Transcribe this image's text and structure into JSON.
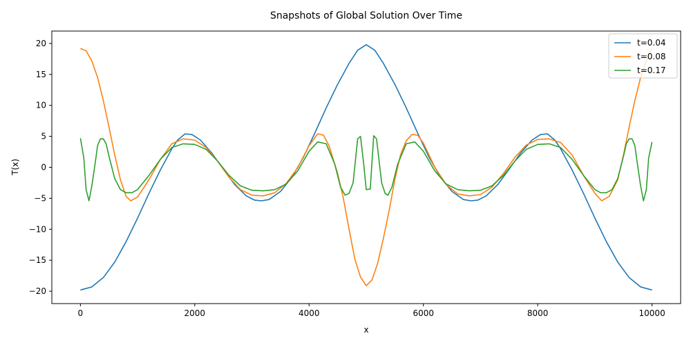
{
  "chart_data": {
    "type": "line",
    "title": "Snapshots of Global Solution Over Time",
    "xlabel": "x",
    "ylabel": "T(x)",
    "xlim": [
      -500,
      10500
    ],
    "ylim": [
      -22,
      22
    ],
    "xticks": [
      0,
      2000,
      4000,
      6000,
      8000,
      10000
    ],
    "yticks": [
      -20,
      -15,
      -10,
      -5,
      0,
      5,
      10,
      15,
      20
    ],
    "grid": false,
    "legend_position": "top-right",
    "series": [
      {
        "name": "t=0.04",
        "color": "#1f77b4",
        "points": [
          [
            0,
            -19.8
          ],
          [
            200,
            -19.3
          ],
          [
            400,
            -17.8
          ],
          [
            600,
            -15.3
          ],
          [
            800,
            -12.0
          ],
          [
            1000,
            -8.2
          ],
          [
            1200,
            -4.2
          ],
          [
            1400,
            -0.4
          ],
          [
            1600,
            3.0
          ],
          [
            1700,
            4.4
          ],
          [
            1830,
            5.4
          ],
          [
            1950,
            5.3
          ],
          [
            2100,
            4.4
          ],
          [
            2300,
            2.3
          ],
          [
            2500,
            -0.3
          ],
          [
            2700,
            -2.8
          ],
          [
            2900,
            -4.6
          ],
          [
            3050,
            -5.3
          ],
          [
            3170,
            -5.4
          ],
          [
            3300,
            -5.2
          ],
          [
            3500,
            -3.9
          ],
          [
            3700,
            -1.6
          ],
          [
            3900,
            1.6
          ],
          [
            4100,
            5.5
          ],
          [
            4300,
            9.6
          ],
          [
            4500,
            13.4
          ],
          [
            4700,
            16.8
          ],
          [
            4850,
            18.9
          ],
          [
            5000,
            19.8
          ],
          [
            5150,
            18.9
          ],
          [
            5300,
            16.8
          ],
          [
            5500,
            13.4
          ],
          [
            5700,
            9.6
          ],
          [
            5900,
            5.5
          ],
          [
            6100,
            1.6
          ],
          [
            6300,
            -1.6
          ],
          [
            6500,
            -3.9
          ],
          [
            6700,
            -5.2
          ],
          [
            6830,
            -5.4
          ],
          [
            6950,
            -5.3
          ],
          [
            7100,
            -4.6
          ],
          [
            7300,
            -2.8
          ],
          [
            7500,
            -0.3
          ],
          [
            7700,
            2.3
          ],
          [
            7900,
            4.4
          ],
          [
            8050,
            5.3
          ],
          [
            8170,
            5.4
          ],
          [
            8300,
            4.4
          ],
          [
            8400,
            3.0
          ],
          [
            8600,
            -0.4
          ],
          [
            8800,
            -4.2
          ],
          [
            9000,
            -8.2
          ],
          [
            9200,
            -12.0
          ],
          [
            9400,
            -15.3
          ],
          [
            9600,
            -17.8
          ],
          [
            9800,
            -19.3
          ],
          [
            10000,
            -19.8
          ]
        ]
      },
      {
        "name": "t=0.08",
        "color": "#ff7f0e",
        "points": [
          [
            0,
            19.2
          ],
          [
            100,
            18.8
          ],
          [
            200,
            17.2
          ],
          [
            300,
            14.5
          ],
          [
            400,
            10.8
          ],
          [
            500,
            6.5
          ],
          [
            600,
            2.0
          ],
          [
            700,
            -2.0
          ],
          [
            800,
            -4.7
          ],
          [
            880,
            -5.4
          ],
          [
            1000,
            -4.8
          ],
          [
            1200,
            -2.0
          ],
          [
            1400,
            1.3
          ],
          [
            1600,
            3.8
          ],
          [
            1800,
            4.6
          ],
          [
            2000,
            4.4
          ],
          [
            2200,
            3.2
          ],
          [
            2400,
            1.0
          ],
          [
            2600,
            -1.6
          ],
          [
            2800,
            -3.6
          ],
          [
            3000,
            -4.5
          ],
          [
            3200,
            -4.6
          ],
          [
            3400,
            -4.1
          ],
          [
            3600,
            -2.6
          ],
          [
            3800,
            -0.1
          ],
          [
            4000,
            3.5
          ],
          [
            4150,
            5.4
          ],
          [
            4250,
            5.2
          ],
          [
            4350,
            3.5
          ],
          [
            4500,
            -1.0
          ],
          [
            4600,
            -5.0
          ],
          [
            4700,
            -10.0
          ],
          [
            4800,
            -14.8
          ],
          [
            4900,
            -17.7
          ],
          [
            5000,
            -19.1
          ],
          [
            5100,
            -18.2
          ],
          [
            5200,
            -15.5
          ],
          [
            5300,
            -11.5
          ],
          [
            5400,
            -7.0
          ],
          [
            5500,
            -2.0
          ],
          [
            5600,
            2.0
          ],
          [
            5700,
            4.3
          ],
          [
            5800,
            5.3
          ],
          [
            5900,
            5.2
          ],
          [
            6000,
            3.9
          ],
          [
            6200,
            0.0
          ],
          [
            6400,
            -2.8
          ],
          [
            6600,
            -4.3
          ],
          [
            6800,
            -4.6
          ],
          [
            7000,
            -4.4
          ],
          [
            7200,
            -3.2
          ],
          [
            7400,
            -1.0
          ],
          [
            7600,
            1.6
          ],
          [
            7800,
            3.6
          ],
          [
            8000,
            4.5
          ],
          [
            8200,
            4.6
          ],
          [
            8400,
            4.0
          ],
          [
            8600,
            2.0
          ],
          [
            8800,
            -1.3
          ],
          [
            9000,
            -4.2
          ],
          [
            9120,
            -5.4
          ],
          [
            9250,
            -4.7
          ],
          [
            9400,
            -2.0
          ],
          [
            9500,
            2.0
          ],
          [
            9600,
            6.5
          ],
          [
            9700,
            10.8
          ],
          [
            9800,
            14.5
          ],
          [
            9900,
            17.2
          ],
          [
            10000,
            19.2
          ]
        ]
      },
      {
        "name": "t=0.17",
        "color": "#2ca02c",
        "points": [
          [
            0,
            4.7
          ],
          [
            60,
            1.5
          ],
          [
            100,
            -3.6
          ],
          [
            150,
            -5.4
          ],
          [
            200,
            -3.0
          ],
          [
            260,
            0.8
          ],
          [
            300,
            3.5
          ],
          [
            350,
            4.6
          ],
          [
            400,
            4.6
          ],
          [
            450,
            3.8
          ],
          [
            500,
            1.8
          ],
          [
            600,
            -1.8
          ],
          [
            700,
            -3.6
          ],
          [
            800,
            -4.1
          ],
          [
            900,
            -4.1
          ],
          [
            1000,
            -3.6
          ],
          [
            1200,
            -1.3
          ],
          [
            1400,
            1.3
          ],
          [
            1600,
            3.2
          ],
          [
            1800,
            3.8
          ],
          [
            2000,
            3.7
          ],
          [
            2200,
            2.9
          ],
          [
            2400,
            1.0
          ],
          [
            2600,
            -1.3
          ],
          [
            2800,
            -3.0
          ],
          [
            3000,
            -3.7
          ],
          [
            3200,
            -3.8
          ],
          [
            3400,
            -3.6
          ],
          [
            3600,
            -2.7
          ],
          [
            3800,
            -0.6
          ],
          [
            4000,
            2.6
          ],
          [
            4150,
            4.1
          ],
          [
            4300,
            3.8
          ],
          [
            4450,
            0.5
          ],
          [
            4550,
            -3.2
          ],
          [
            4630,
            -4.5
          ],
          [
            4700,
            -4.2
          ],
          [
            4770,
            -2.5
          ],
          [
            4850,
            4.6
          ],
          [
            4900,
            5.0
          ],
          [
            4950,
            1.0
          ],
          [
            5000,
            -3.6
          ],
          [
            5070,
            -3.5
          ],
          [
            5130,
            5.1
          ],
          [
            5180,
            4.6
          ],
          [
            5270,
            -2.5
          ],
          [
            5330,
            -4.2
          ],
          [
            5380,
            -4.5
          ],
          [
            5450,
            -3.2
          ],
          [
            5550,
            0.5
          ],
          [
            5700,
            3.8
          ],
          [
            5850,
            4.1
          ],
          [
            6000,
            2.6
          ],
          [
            6200,
            -0.6
          ],
          [
            6400,
            -2.7
          ],
          [
            6600,
            -3.6
          ],
          [
            6800,
            -3.8
          ],
          [
            7000,
            -3.7
          ],
          [
            7200,
            -3.0
          ],
          [
            7400,
            -1.3
          ],
          [
            7600,
            1.0
          ],
          [
            7800,
            2.9
          ],
          [
            8000,
            3.7
          ],
          [
            8200,
            3.8
          ],
          [
            8400,
            3.2
          ],
          [
            8600,
            1.3
          ],
          [
            8800,
            -1.3
          ],
          [
            9000,
            -3.6
          ],
          [
            9100,
            -4.1
          ],
          [
            9200,
            -4.1
          ],
          [
            9300,
            -3.6
          ],
          [
            9400,
            -1.8
          ],
          [
            9500,
            1.8
          ],
          [
            9550,
            3.8
          ],
          [
            9600,
            4.6
          ],
          [
            9650,
            4.6
          ],
          [
            9700,
            3.5
          ],
          [
            9740,
            0.8
          ],
          [
            9800,
            -3.0
          ],
          [
            9850,
            -5.4
          ],
          [
            9900,
            -3.6
          ],
          [
            9940,
            1.5
          ],
          [
            10000,
            4.1
          ]
        ]
      }
    ]
  }
}
